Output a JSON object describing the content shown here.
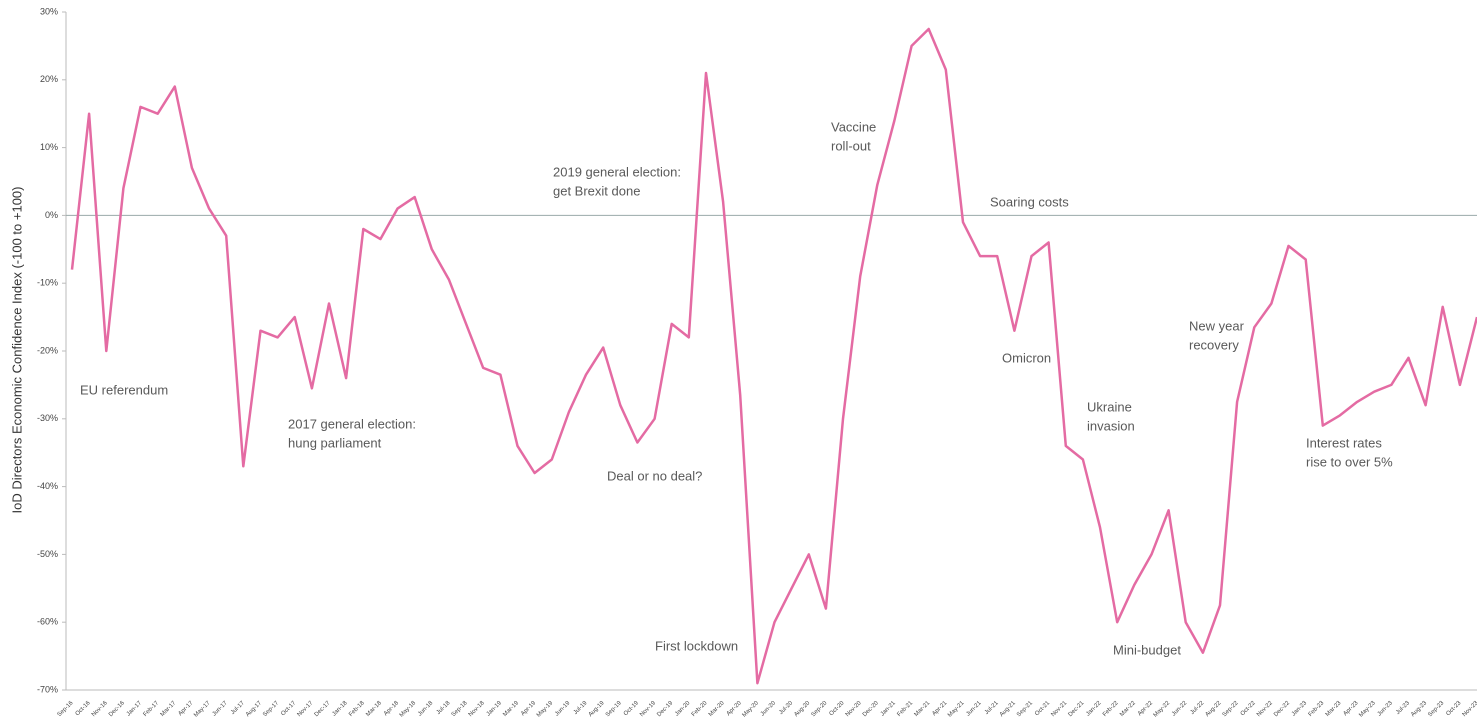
{
  "chart_data": {
    "type": "line",
    "y_label": "IoD Directors Economic Confidence Index (-100 to +100)",
    "categories": [
      "Sep-16",
      "Oct-16",
      "Nov-16",
      "Dec-16",
      "Jan-17",
      "Feb-17",
      "Mar-17",
      "Apr-17",
      "May-17",
      "Jun-17",
      "Jul-17",
      "Aug-17",
      "Sep-17",
      "Oct-17",
      "Nov-17",
      "Dec-17",
      "Jan-18",
      "Feb-18",
      "Mar-18",
      "Apr-18",
      "May-18",
      "Jun-18",
      "Jul-18",
      "Sep-18",
      "Nov-18",
      "Jan-19",
      "Mar-19",
      "Apr-19",
      "May-19",
      "Jun-19",
      "Jul-19",
      "Aug-19",
      "Sep-19",
      "Oct-19",
      "Nov-19",
      "Dec-19",
      "Jan-20",
      "Feb-20",
      "Mar-20",
      "Apr-20",
      "May-20",
      "Jun-20",
      "Jul-20",
      "Aug-20",
      "Sep-20",
      "Oct-20",
      "Nov-20",
      "Dec-20",
      "Jan-21",
      "Feb-21",
      "Mar-21",
      "Apr-21",
      "May-21",
      "Jun-21",
      "Jul-21",
      "Aug-21",
      "Sep-21",
      "Oct-21",
      "Nov-21",
      "Dec-21",
      "Jan-22",
      "Feb-22",
      "Mar-22",
      "Apr-22",
      "May-22",
      "Jun-22",
      "Jul-22",
      "Aug-22",
      "Sep-22",
      "Oct-22",
      "Nov-22",
      "Dec-22",
      "Jan-23",
      "Feb-23",
      "Mar-23",
      "Apr-23",
      "May-23",
      "Jun-23",
      "Jul-23",
      "Aug-23",
      "Sep-23",
      "Oct-23",
      "Nov-23"
    ],
    "series": [
      {
        "name": "IoD Directors Economic Confidence Index",
        "color": "#e46ba3",
        "values": [
          -8,
          15,
          -20,
          4,
          16,
          15,
          19,
          7,
          1,
          -3,
          -37,
          -17,
          -18,
          -15,
          -25.5,
          -13,
          -24,
          -2,
          -3.5,
          1,
          2.7,
          -5,
          -9.5,
          -16,
          -22.5,
          -23.5,
          -34,
          -38,
          -36,
          -29,
          -23.5,
          -19.5,
          -28,
          -33.5,
          -30,
          -16,
          -18,
          21,
          2,
          -26.5,
          -69,
          -60,
          -55,
          -50,
          -58,
          -30,
          -9,
          4.5,
          14,
          25,
          27.5,
          21.5,
          -1,
          -6,
          -6,
          -17,
          -6,
          -4,
          -34,
          -36,
          -46,
          -60,
          -54.5,
          -50,
          -43.5,
          -60,
          -64.5,
          -57.5,
          -27.5,
          -16.5,
          -13,
          -4.5,
          -6.5,
          -31,
          -29.5,
          -27.5,
          -26,
          -25,
          -21,
          -28,
          -13.5,
          -25,
          -15
        ]
      }
    ],
    "ylim": [
      -70,
      30
    ],
    "yticks": [
      {
        "value": 30,
        "label": "30%"
      },
      {
        "value": 20,
        "label": "20%"
      },
      {
        "value": 10,
        "label": "10%"
      },
      {
        "value": 0,
        "label": "0%"
      },
      {
        "value": -10,
        "label": "-10%"
      },
      {
        "value": -20,
        "label": "-20%"
      },
      {
        "value": -30,
        "label": "-30%"
      },
      {
        "value": -40,
        "label": "-40%"
      },
      {
        "value": -50,
        "label": "-50%"
      },
      {
        "value": -60,
        "label": "-60%"
      },
      {
        "value": -70,
        "label": "-70%"
      }
    ],
    "annotations": [
      [
        "EU referendum"
      ],
      [
        "2017 general election:",
        "hung parliament"
      ],
      [
        "2019 general election:",
        "get Brexit done"
      ],
      [
        "Deal or no deal?"
      ],
      [
        "First lockdown"
      ],
      [
        "Vaccine",
        "roll-out"
      ],
      [
        "Soaring costs"
      ],
      [
        "Omicron"
      ],
      [
        "Ukraine",
        "invasion"
      ],
      [
        "Mini-budget"
      ],
      [
        "New year",
        "recovery"
      ],
      [
        "Interest rates",
        "rise to over 5%"
      ]
    ]
  }
}
